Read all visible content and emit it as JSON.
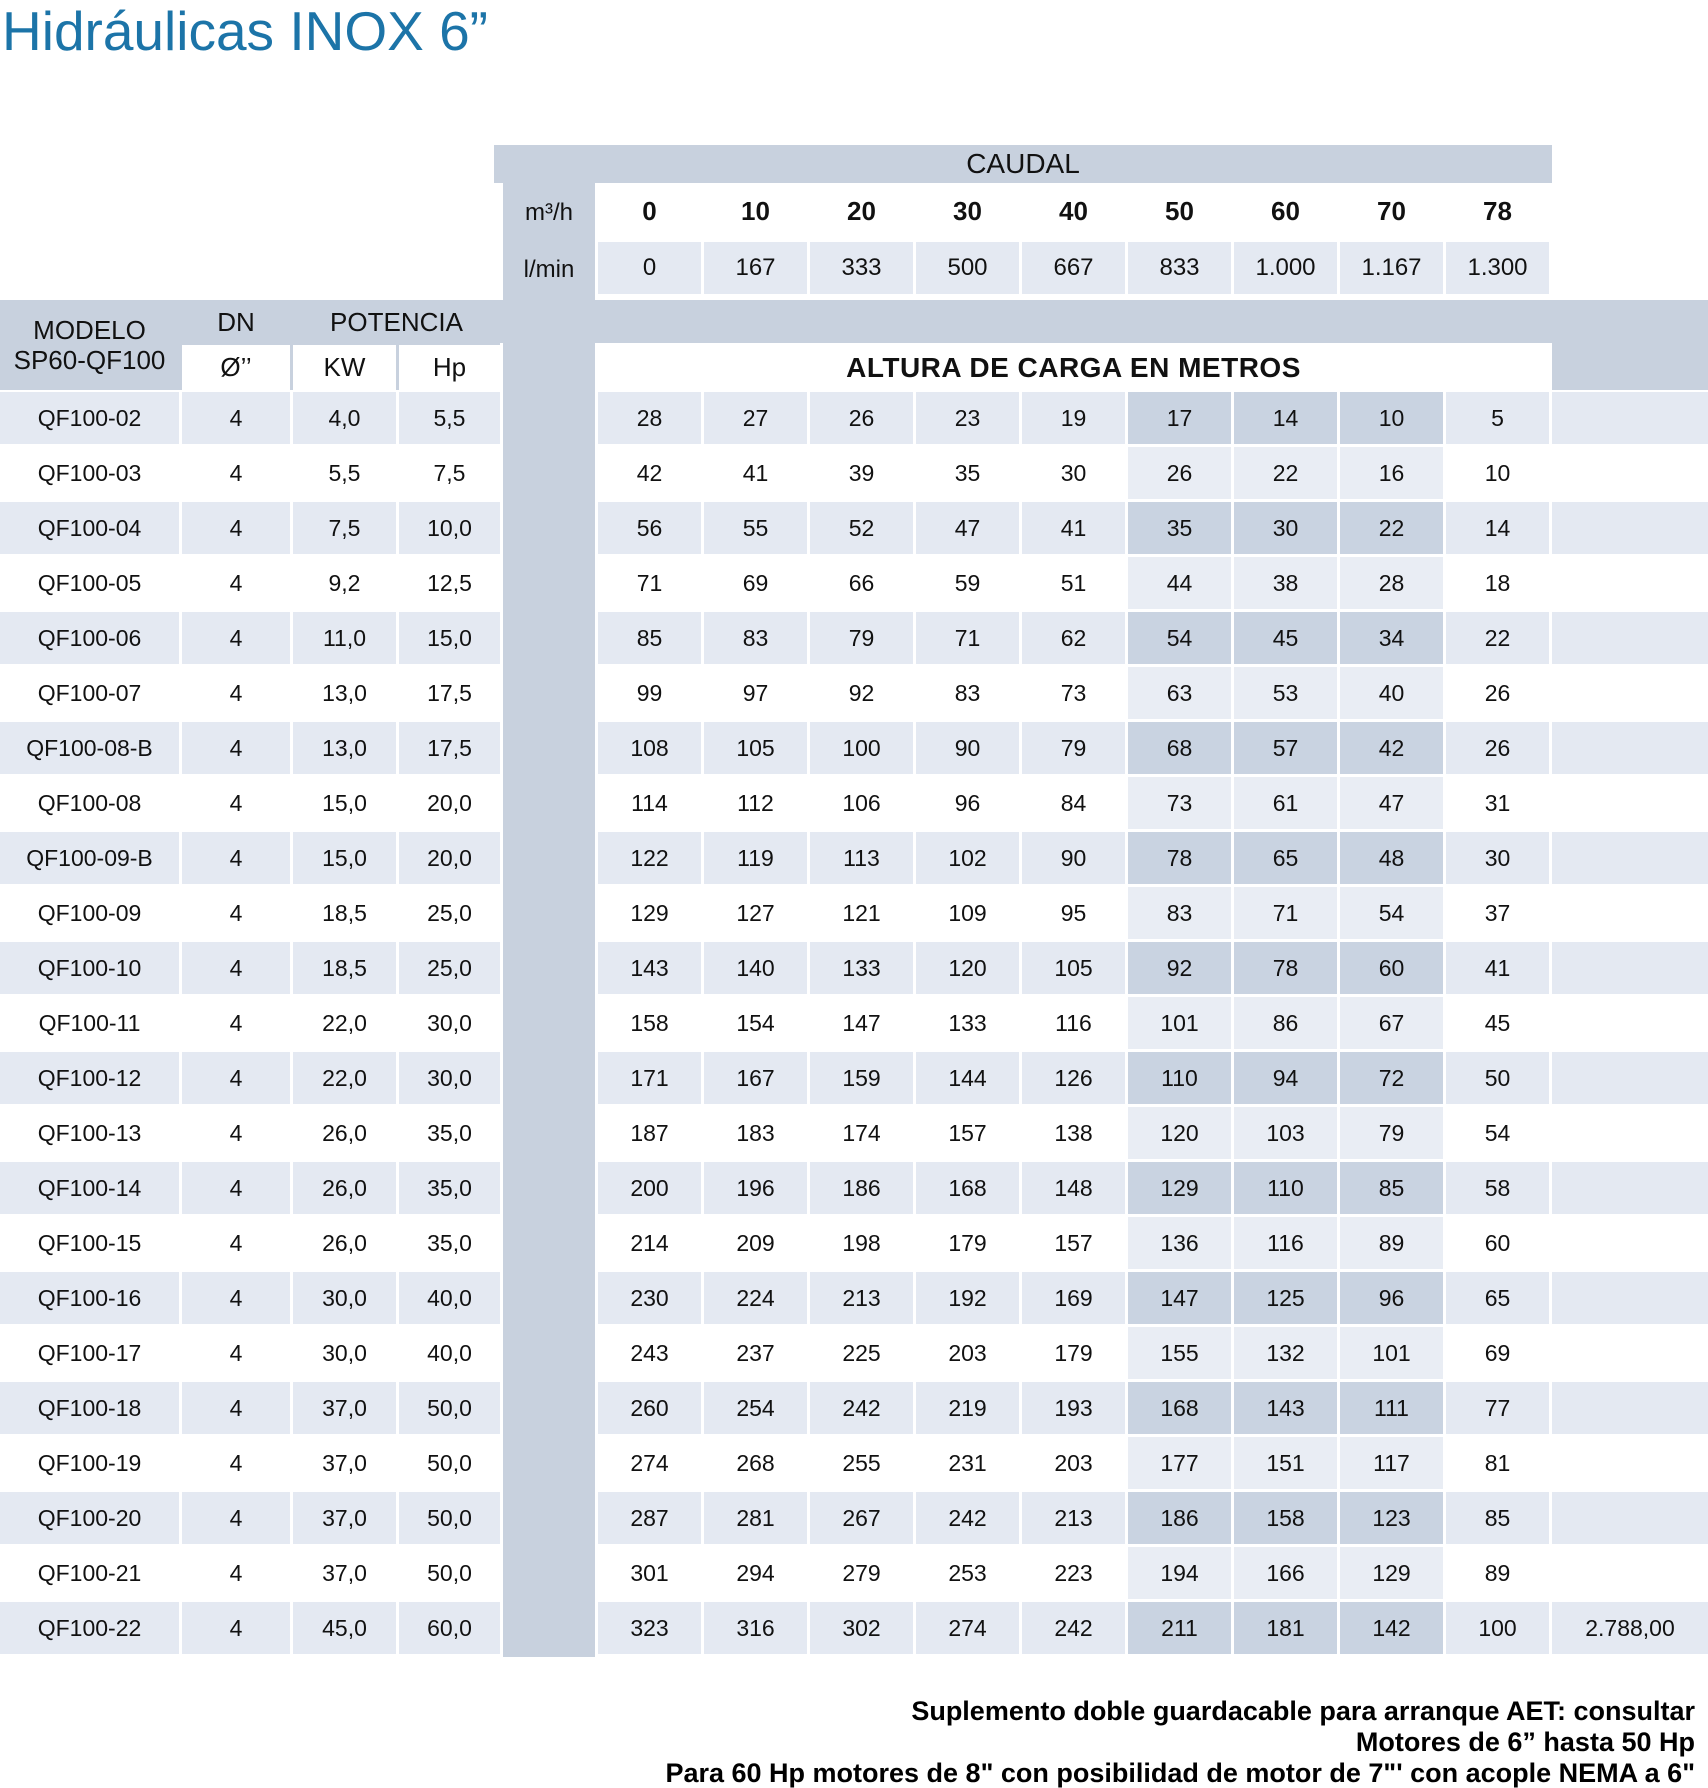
{
  "title": "Hidráulicas INOX 6”",
  "colors": {
    "title_blue": "#1C74A8",
    "header_gray": "#C8D1DE",
    "row_light_blue": "#E4E9F2",
    "band_dark_blue": "#C9D3E1",
    "band_light_blue": "#E9EDF4"
  },
  "caudal": {
    "label": "CAUDAL",
    "m3h_label": "m³/h",
    "lmin_label": "l/min",
    "flows_m3h": [
      "0",
      "10",
      "20",
      "30",
      "40",
      "50",
      "60",
      "70",
      "78"
    ],
    "flows_lmin": [
      "0",
      "167",
      "333",
      "500",
      "667",
      "833",
      "1.000",
      "1.167",
      "1.300"
    ]
  },
  "left_header": {
    "modelo": "MODELO",
    "serie": "SP60-QF100",
    "dn": "DN",
    "dn_unit": "Ø’’",
    "potencia": "POTENCIA",
    "kw": "KW",
    "hp": "Hp"
  },
  "altura_label": "ALTURA DE CARGA EN METROS",
  "rows": [
    {
      "model": "QF100-02",
      "dn": "4",
      "kw": "4,0",
      "hp": "5,5",
      "heads": [
        "28",
        "27",
        "26",
        "23",
        "19",
        "17",
        "14",
        "10",
        "5"
      ],
      "extra": ""
    },
    {
      "model": "QF100-03",
      "dn": "4",
      "kw": "5,5",
      "hp": "7,5",
      "heads": [
        "42",
        "41",
        "39",
        "35",
        "30",
        "26",
        "22",
        "16",
        "10"
      ],
      "extra": ""
    },
    {
      "model": "QF100-04",
      "dn": "4",
      "kw": "7,5",
      "hp": "10,0",
      "heads": [
        "56",
        "55",
        "52",
        "47",
        "41",
        "35",
        "30",
        "22",
        "14"
      ],
      "extra": ""
    },
    {
      "model": "QF100-05",
      "dn": "4",
      "kw": "9,2",
      "hp": "12,5",
      "heads": [
        "71",
        "69",
        "66",
        "59",
        "51",
        "44",
        "38",
        "28",
        "18"
      ],
      "extra": ""
    },
    {
      "model": "QF100-06",
      "dn": "4",
      "kw": "11,0",
      "hp": "15,0",
      "heads": [
        "85",
        "83",
        "79",
        "71",
        "62",
        "54",
        "45",
        "34",
        "22"
      ],
      "extra": ""
    },
    {
      "model": "QF100-07",
      "dn": "4",
      "kw": "13,0",
      "hp": "17,5",
      "heads": [
        "99",
        "97",
        "92",
        "83",
        "73",
        "63",
        "53",
        "40",
        "26"
      ],
      "extra": ""
    },
    {
      "model": "QF100-08-B",
      "dn": "4",
      "kw": "13,0",
      "hp": "17,5",
      "heads": [
        "108",
        "105",
        "100",
        "90",
        "79",
        "68",
        "57",
        "42",
        "26"
      ],
      "extra": ""
    },
    {
      "model": "QF100-08",
      "dn": "4",
      "kw": "15,0",
      "hp": "20,0",
      "heads": [
        "114",
        "112",
        "106",
        "96",
        "84",
        "73",
        "61",
        "47",
        "31"
      ],
      "extra": ""
    },
    {
      "model": "QF100-09-B",
      "dn": "4",
      "kw": "15,0",
      "hp": "20,0",
      "heads": [
        "122",
        "119",
        "113",
        "102",
        "90",
        "78",
        "65",
        "48",
        "30"
      ],
      "extra": ""
    },
    {
      "model": "QF100-09",
      "dn": "4",
      "kw": "18,5",
      "hp": "25,0",
      "heads": [
        "129",
        "127",
        "121",
        "109",
        "95",
        "83",
        "71",
        "54",
        "37"
      ],
      "extra": ""
    },
    {
      "model": "QF100-10",
      "dn": "4",
      "kw": "18,5",
      "hp": "25,0",
      "heads": [
        "143",
        "140",
        "133",
        "120",
        "105",
        "92",
        "78",
        "60",
        "41"
      ],
      "extra": ""
    },
    {
      "model": "QF100-11",
      "dn": "4",
      "kw": "22,0",
      "hp": "30,0",
      "heads": [
        "158",
        "154",
        "147",
        "133",
        "116",
        "101",
        "86",
        "67",
        "45"
      ],
      "extra": ""
    },
    {
      "model": "QF100-12",
      "dn": "4",
      "kw": "22,0",
      "hp": "30,0",
      "heads": [
        "171",
        "167",
        "159",
        "144",
        "126",
        "110",
        "94",
        "72",
        "50"
      ],
      "extra": ""
    },
    {
      "model": "QF100-13",
      "dn": "4",
      "kw": "26,0",
      "hp": "35,0",
      "heads": [
        "187",
        "183",
        "174",
        "157",
        "138",
        "120",
        "103",
        "79",
        "54"
      ],
      "extra": ""
    },
    {
      "model": "QF100-14",
      "dn": "4",
      "kw": "26,0",
      "hp": "35,0",
      "heads": [
        "200",
        "196",
        "186",
        "168",
        "148",
        "129",
        "110",
        "85",
        "58"
      ],
      "extra": ""
    },
    {
      "model": "QF100-15",
      "dn": "4",
      "kw": "26,0",
      "hp": "35,0",
      "heads": [
        "214",
        "209",
        "198",
        "179",
        "157",
        "136",
        "116",
        "89",
        "60"
      ],
      "extra": ""
    },
    {
      "model": "QF100-16",
      "dn": "4",
      "kw": "30,0",
      "hp": "40,0",
      "heads": [
        "230",
        "224",
        "213",
        "192",
        "169",
        "147",
        "125",
        "96",
        "65"
      ],
      "extra": ""
    },
    {
      "model": "QF100-17",
      "dn": "4",
      "kw": "30,0",
      "hp": "40,0",
      "heads": [
        "243",
        "237",
        "225",
        "203",
        "179",
        "155",
        "132",
        "101",
        "69"
      ],
      "extra": ""
    },
    {
      "model": "QF100-18",
      "dn": "4",
      "kw": "37,0",
      "hp": "50,0",
      "heads": [
        "260",
        "254",
        "242",
        "219",
        "193",
        "168",
        "143",
        "111",
        "77"
      ],
      "extra": ""
    },
    {
      "model": "QF100-19",
      "dn": "4",
      "kw": "37,0",
      "hp": "50,0",
      "heads": [
        "274",
        "268",
        "255",
        "231",
        "203",
        "177",
        "151",
        "117",
        "81"
      ],
      "extra": ""
    },
    {
      "model": "QF100-20",
      "dn": "4",
      "kw": "37,0",
      "hp": "50,0",
      "heads": [
        "287",
        "281",
        "267",
        "242",
        "213",
        "186",
        "158",
        "123",
        "85"
      ],
      "extra": ""
    },
    {
      "model": "QF100-21",
      "dn": "4",
      "kw": "37,0",
      "hp": "50,0",
      "heads": [
        "301",
        "294",
        "279",
        "253",
        "223",
        "194",
        "166",
        "129",
        "89"
      ],
      "extra": ""
    },
    {
      "model": "QF100-22",
      "dn": "4",
      "kw": "45,0",
      "hp": "60,0",
      "heads": [
        "323",
        "316",
        "302",
        "274",
        "242",
        "211",
        "181",
        "142",
        "100"
      ],
      "extra": "2.788,00"
    }
  ],
  "notes": [
    "Suplemento doble guardacable para arranque AET: consultar",
    "Motores de 6” hasta 50 Hp",
    "Para 60 Hp motores de 8\" con posibilidad de motor de 7\"' con acople NEMA a 6\""
  ]
}
